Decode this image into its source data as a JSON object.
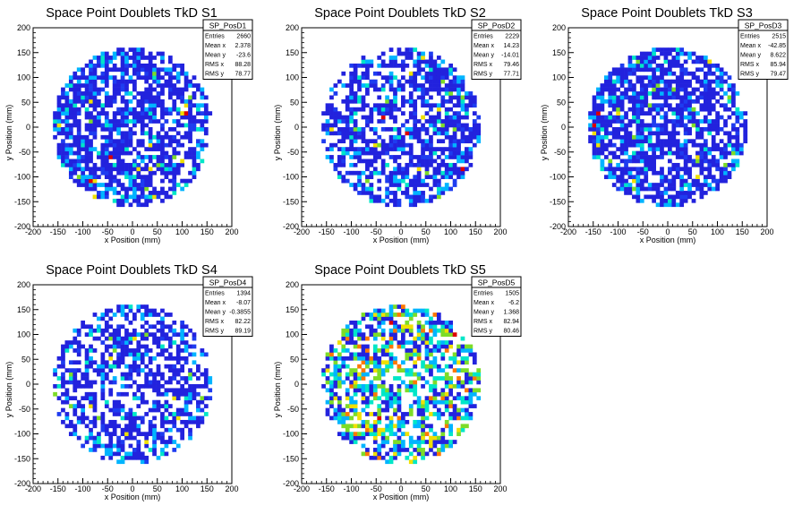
{
  "chart_data": [
    {
      "type": "heatmap",
      "title": "Space Point Doublets TkD S1",
      "xlabel": "x Position (mm)",
      "ylabel": "y Position (mm)",
      "xlim": [
        -200,
        200
      ],
      "ylim": [
        -200,
        200
      ],
      "xticks": [
        "-200",
        "-150",
        "-100",
        "-50",
        "0",
        "50",
        "100",
        "150",
        "200"
      ],
      "yticks": [
        "-200",
        "-150",
        "-100",
        "-50",
        "0",
        "50",
        "100",
        "150",
        "200"
      ],
      "bin_width": 8,
      "region": {
        "shape": "circle",
        "center": [
          0,
          0
        ],
        "radius": 160
      },
      "stats": {
        "name": "SP_PosD1",
        "rows": [
          {
            "label": "Entries",
            "value": "2660"
          },
          {
            "label": "Mean x",
            "value": "2.378"
          },
          {
            "label": "Mean y",
            "value": "-23.6"
          },
          {
            "label": "RMS x",
            "value": "88.28"
          },
          {
            "label": "RMS y",
            "value": "78.77"
          }
        ]
      },
      "density": 0.72,
      "bias": "left",
      "hot_bins": [
        [
          104,
          24
        ],
        [
          -88,
          -112
        ],
        [
          -48,
          -64
        ]
      ]
    },
    {
      "type": "heatmap",
      "title": "Space Point Doublets TkD S2",
      "xlabel": "x Position (mm)",
      "ylabel": "y Position (mm)",
      "xlim": [
        -200,
        200
      ],
      "ylim": [
        -200,
        200
      ],
      "xticks": [
        "-200",
        "-150",
        "-100",
        "-50",
        "0",
        "50",
        "100",
        "150",
        "200"
      ],
      "yticks": [
        "-200",
        "-150",
        "-100",
        "-50",
        "0",
        "50",
        "100",
        "150",
        "200"
      ],
      "bin_width": 8,
      "region": {
        "shape": "circle",
        "center": [
          0,
          0
        ],
        "radius": 160
      },
      "stats": {
        "name": "SP_PosD2",
        "rows": [
          {
            "label": "Entries",
            "value": "2229"
          },
          {
            "label": "Mean x",
            "value": "14.23"
          },
          {
            "label": "Mean y",
            "value": "-14.01"
          },
          {
            "label": "RMS x",
            "value": "79.46"
          },
          {
            "label": "RMS y",
            "value": "77.71"
          }
        ]
      },
      "density": 0.62,
      "bias": "right",
      "hot_bins": [
        [
          8,
          -16
        ],
        [
          120,
          -88
        ],
        [
          -40,
          16
        ]
      ]
    },
    {
      "type": "heatmap",
      "title": "Space Point Doublets TkD S3",
      "xlabel": "x Position (mm)",
      "ylabel": "y Position (mm)",
      "xlim": [
        -200,
        200
      ],
      "ylim": [
        -200,
        200
      ],
      "xticks": [
        "-200",
        "-150",
        "-100",
        "-50",
        "0",
        "50",
        "100",
        "150",
        "200"
      ],
      "yticks": [
        "-200",
        "-150",
        "-100",
        "-50",
        "0",
        "50",
        "100",
        "150",
        "200"
      ],
      "bin_width": 8,
      "region": {
        "shape": "circle",
        "center": [
          0,
          0
        ],
        "radius": 160
      },
      "stats": {
        "name": "SP_PosD3",
        "rows": [
          {
            "label": "Entries",
            "value": "2515"
          },
          {
            "label": "Mean x",
            "value": "-42.85"
          },
          {
            "label": "Mean y",
            "value": "8.622"
          },
          {
            "label": "RMS x",
            "value": "85.94"
          },
          {
            "label": "RMS y",
            "value": "79.47"
          }
        ]
      },
      "density": 0.7,
      "bias": "left",
      "hot_bins": [
        [
          -152,
          0
        ],
        [
          -144,
          24
        ]
      ]
    },
    {
      "type": "heatmap",
      "title": "Space Point Doublets TkD S4",
      "xlabel": "x Position (mm)",
      "ylabel": "y Position (mm)",
      "xlim": [
        -200,
        200
      ],
      "ylim": [
        -200,
        200
      ],
      "xticks": [
        "-200",
        "-150",
        "-100",
        "-50",
        "0",
        "50",
        "100",
        "150",
        "200"
      ],
      "yticks": [
        "-200",
        "-150",
        "-100",
        "-50",
        "0",
        "50",
        "100",
        "150",
        "200"
      ],
      "bin_width": 8,
      "region": {
        "shape": "circle",
        "center": [
          0,
          0
        ],
        "radius": 160
      },
      "stats": {
        "name": "SP_PosD4",
        "rows": [
          {
            "label": "Entries",
            "value": "1394"
          },
          {
            "label": "Mean x",
            "value": "-8.07"
          },
          {
            "label": "Mean y",
            "value": "-0.3855"
          },
          {
            "label": "RMS x",
            "value": "82.22"
          },
          {
            "label": "RMS y",
            "value": "89.19"
          }
        ]
      },
      "density": 0.55,
      "bias": "none",
      "hot_bins": [
        [
          -96,
          128
        ]
      ]
    },
    {
      "type": "heatmap",
      "title": "Space Point Doublets TkD S5",
      "xlabel": "x Position (mm)",
      "ylabel": "y Position (mm)",
      "xlim": [
        -200,
        200
      ],
      "ylim": [
        -200,
        200
      ],
      "xticks": [
        "-200",
        "-150",
        "-100",
        "-50",
        "0",
        "50",
        "100",
        "150",
        "200"
      ],
      "yticks": [
        "-200",
        "-150",
        "-100",
        "-50",
        "0",
        "50",
        "100",
        "150",
        "200"
      ],
      "bin_width": 8,
      "region": {
        "shape": "circle",
        "center": [
          0,
          0
        ],
        "radius": 160
      },
      "stats": {
        "name": "SP_PosD5",
        "rows": [
          {
            "label": "Entries",
            "value": "1505"
          },
          {
            "label": "Mean x",
            "value": "-6.2"
          },
          {
            "label": "Mean y",
            "value": "1.368"
          },
          {
            "label": "RMS x",
            "value": "82.94"
          },
          {
            "label": "RMS y",
            "value": "80.46"
          }
        ]
      },
      "density": 0.58,
      "bias": "none",
      "hot_bins": [
        [
          -48,
          -72
        ],
        [
          -24,
          120
        ],
        [
          104,
          96
        ]
      ]
    }
  ],
  "colors": {
    "background": "#ffffff",
    "axis": "#000000",
    "palette": [
      "#2222dd",
      "#1e3cf0",
      "#00b4ff",
      "#00e6c8",
      "#7ddc28",
      "#f0e000",
      "#ff7800",
      "#dd0000"
    ]
  }
}
